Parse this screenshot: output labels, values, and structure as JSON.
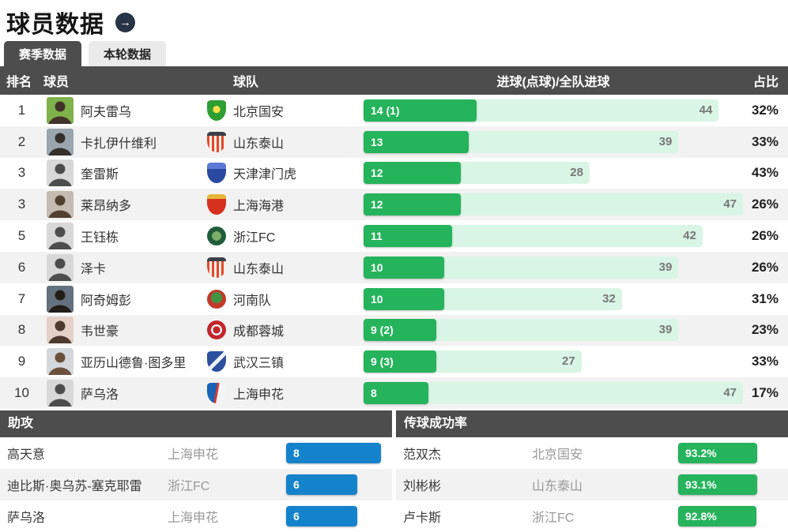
{
  "page": {
    "title": "球员数据",
    "more_arrow": "→"
  },
  "tabs": [
    {
      "label": "赛季数据",
      "active": true
    },
    {
      "label": "本轮数据",
      "active": false
    }
  ],
  "colors": {
    "header-dark": "#4d4d4d",
    "tab-inactive": "#eaeaea",
    "row-stripe": "#f2f2f2",
    "goal-bar": "#25b35c",
    "goal-track": "#d9f5e5",
    "assist-bar": "#1583cc",
    "pass-bar": "#25b35c",
    "arrow-bg": "#263445"
  },
  "chart_data": [
    {
      "type": "bar",
      "title": "进球(点球)/全队进球",
      "columns": [
        "排名",
        "球员",
        "球队",
        "进球(点球)/全队进球",
        "占比"
      ],
      "scale_max": 47,
      "rows": [
        {
          "rank": "1",
          "player": "阿夫雷乌",
          "team": "北京国安",
          "goals_label": "14 (1)",
          "goals": 14,
          "team_goals": 44,
          "share": "32%"
        },
        {
          "rank": "2",
          "player": "卡扎伊什维利",
          "team": "山东泰山",
          "goals_label": "13",
          "goals": 13,
          "team_goals": 39,
          "share": "33%"
        },
        {
          "rank": "3",
          "player": "奎雷斯",
          "team": "天津津门虎",
          "goals_label": "12",
          "goals": 12,
          "team_goals": 28,
          "share": "43%"
        },
        {
          "rank": "3",
          "player": "莱昂纳多",
          "team": "上海海港",
          "goals_label": "12",
          "goals": 12,
          "team_goals": 47,
          "share": "26%"
        },
        {
          "rank": "5",
          "player": "王钰栋",
          "team": "浙江FC",
          "goals_label": "11",
          "goals": 11,
          "team_goals": 42,
          "share": "26%"
        },
        {
          "rank": "6",
          "player": "泽卡",
          "team": "山东泰山",
          "goals_label": "10",
          "goals": 10,
          "team_goals": 39,
          "share": "26%"
        },
        {
          "rank": "7",
          "player": "阿奇姆彭",
          "team": "河南队",
          "goals_label": "10",
          "goals": 10,
          "team_goals": 32,
          "share": "31%"
        },
        {
          "rank": "8",
          "player": "韦世豪",
          "team": "成都蓉城",
          "goals_label": "9 (2)",
          "goals": 9,
          "team_goals": 39,
          "share": "23%"
        },
        {
          "rank": "9",
          "player": "亚历山德鲁·图多里",
          "team": "武汉三镇",
          "goals_label": "9 (3)",
          "goals": 9,
          "team_goals": 27,
          "share": "33%"
        },
        {
          "rank": "10",
          "player": "萨乌洛",
          "team": "上海申花",
          "goals_label": "8",
          "goals": 8,
          "team_goals": 47,
          "share": "17%"
        }
      ]
    },
    {
      "type": "bar",
      "title": "助攻",
      "scale_max": 8,
      "rows": [
        {
          "player": "高天意",
          "team": "上海申花",
          "value": 8,
          "label": "8"
        },
        {
          "player": "迪比斯·奥乌苏-塞克耶雷",
          "team": "浙江FC",
          "value": 6,
          "label": "6"
        },
        {
          "player": "萨乌洛",
          "team": "上海申花",
          "value": 6,
          "label": "6"
        }
      ]
    },
    {
      "type": "bar",
      "title": "传球成功率",
      "scale_max": 100,
      "rows": [
        {
          "player": "范双杰",
          "team": "北京国安",
          "value": 93.2,
          "label": "93.2%"
        },
        {
          "player": "刘彬彬",
          "team": "山东泰山",
          "value": 93.1,
          "label": "93.1%"
        },
        {
          "player": "卢卡斯",
          "team": "浙江FC",
          "value": 92.8,
          "label": "92.8%"
        }
      ]
    }
  ]
}
